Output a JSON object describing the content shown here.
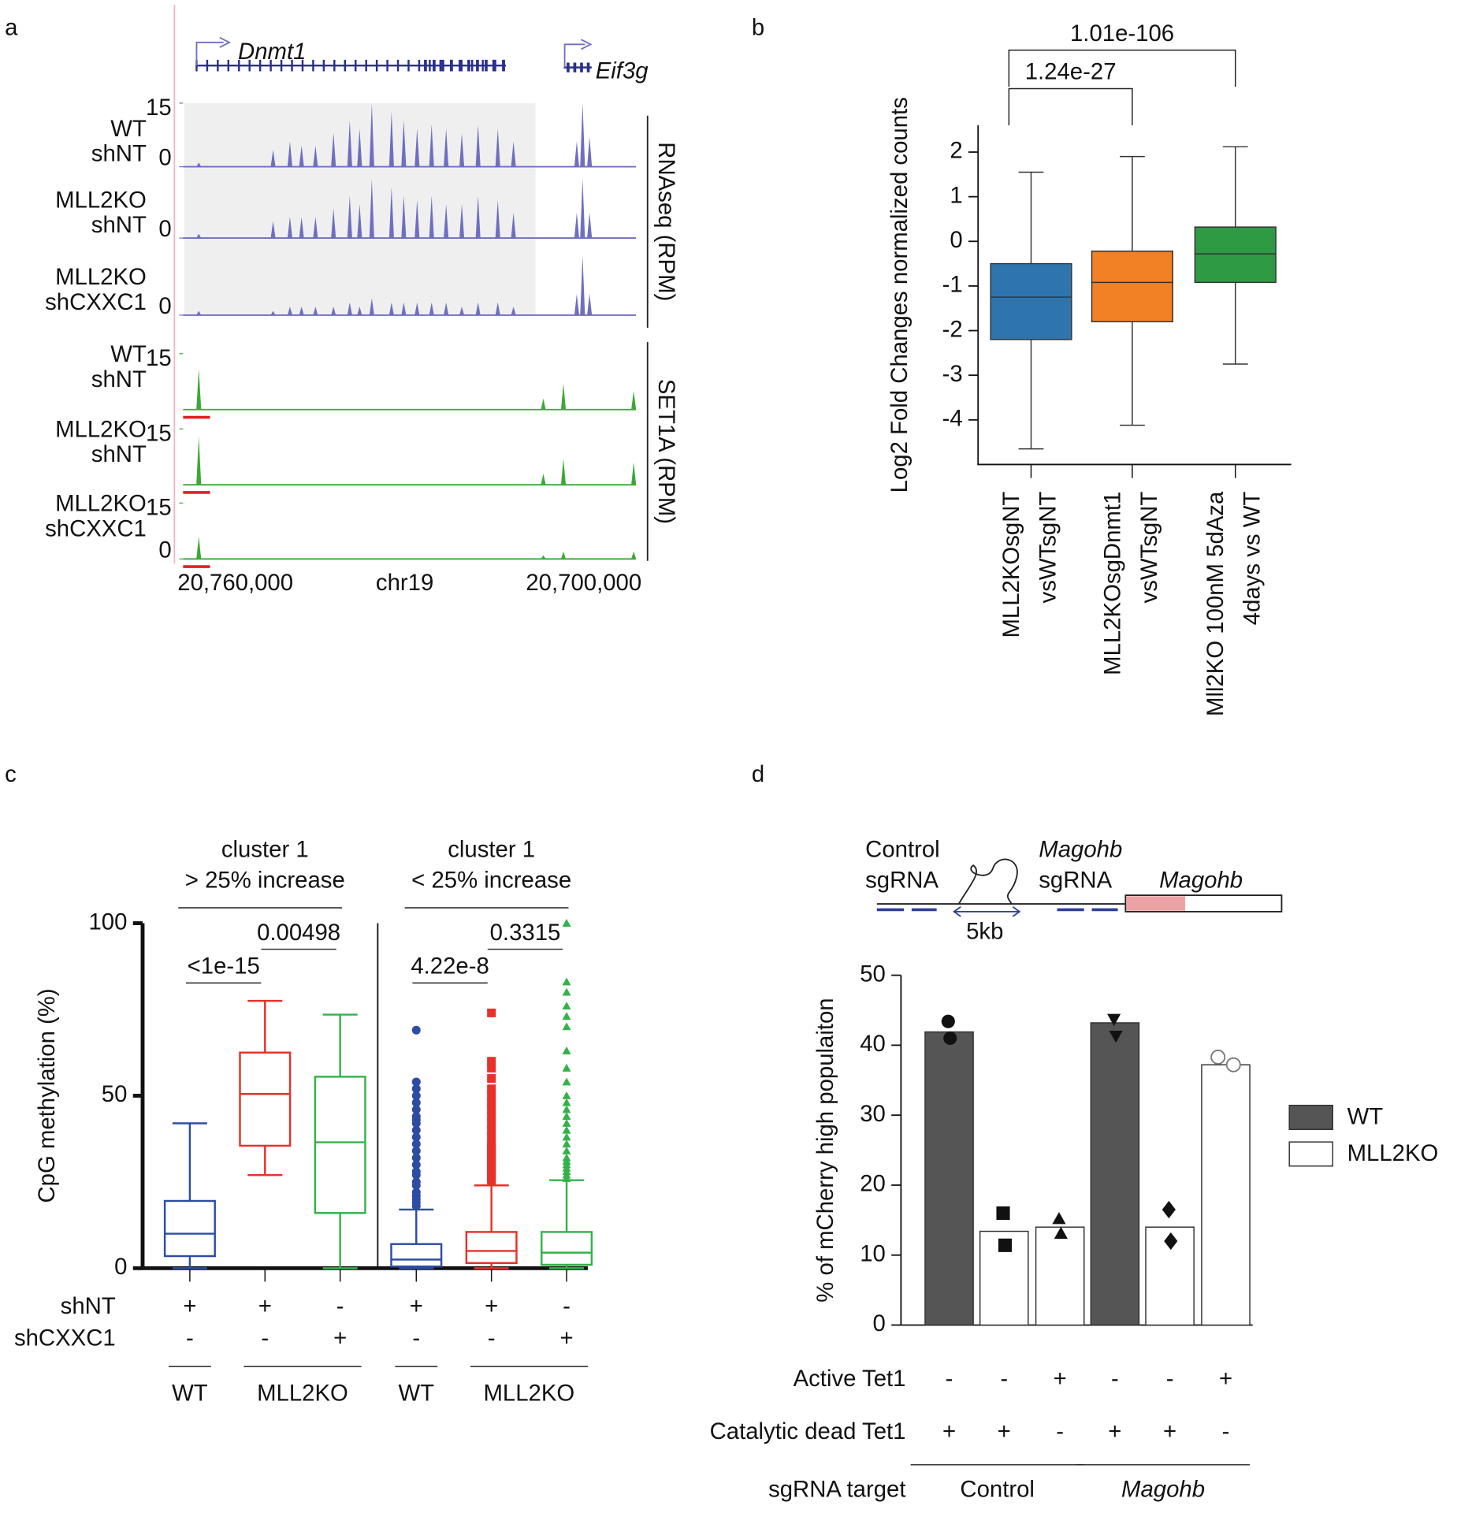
{
  "chart_data": [
    {
      "panel": "a",
      "type": "genome_tracks",
      "genes": [
        "Dnmt1",
        "Eif3g"
      ],
      "xlabel": "chr19",
      "xlim": [
        20769000,
        20691000
      ],
      "xticks": [
        {
          "value": 20760000,
          "label": "20,760,000"
        },
        {
          "value": 20700000,
          "label": "20,700,000"
        }
      ],
      "highlight": [
        20768800,
        20708300
      ],
      "groups": [
        {
          "name": "RNAseq (RPM)",
          "color": "#6f6fc0",
          "peaks_x": [
            20766300,
            20753500,
            20750600,
            20748600,
            20746200,
            20743100,
            20740300,
            20738600,
            20736500,
            20733100,
            20731000,
            20728700,
            20726200,
            20723700,
            20721000,
            20718200,
            20714800,
            20712100,
            20701200,
            20700200,
            20699000
          ],
          "tracks": [
            {
              "label": [
                "WT",
                "shNT"
              ],
              "ylim": [
                0,
                15
              ],
              "yticks": [
                0,
                15
              ],
              "values": [
                1,
                4,
                6,
                5,
                5,
                8,
                11,
                9,
                15,
                13,
                11,
                9,
                10,
                9,
                8,
                10,
                9,
                6,
                6,
                15,
                7
              ]
            },
            {
              "label": [
                "MLL2KO",
                "shNT"
              ],
              "ylim": [
                0,
                15
              ],
              "yticks": [
                0
              ],
              "values": [
                1,
                4,
                5,
                5,
                5,
                7,
                10,
                8,
                14,
                12,
                10,
                9,
                10,
                8,
                8,
                10,
                9,
                6,
                6,
                14,
                6
              ]
            },
            {
              "label": [
                "MLL2KO",
                "shCXXC1"
              ],
              "ylim": [
                0,
                15
              ],
              "yticks": [
                0
              ],
              "values": [
                1,
                1,
                2,
                2,
                2,
                2,
                3,
                2,
                4,
                3,
                3,
                3,
                3,
                3,
                2,
                3,
                3,
                2,
                5,
                14,
                5
              ]
            }
          ]
        },
        {
          "name": "SET1A (RPM)",
          "color": "#3aaa35",
          "peaks_x": [
            20766300,
            20706960,
            20703500,
            20691400
          ],
          "tracks": [
            {
              "label": [
                "WT",
                "shNT"
              ],
              "ylim": [
                0,
                15
              ],
              "yticks": [
                15
              ],
              "values": [
                11,
                3,
                7,
                5
              ]
            },
            {
              "label": [
                "MLL2KO",
                "shNT"
              ],
              "ylim": [
                0,
                15
              ],
              "yticks": [
                15
              ],
              "values": [
                13,
                3,
                7,
                6
              ]
            },
            {
              "label": [
                "MLL2KO",
                "shCXXC1"
              ],
              "ylim": [
                0,
                15
              ],
              "yticks": [
                0,
                15
              ],
              "values": [
                6,
                1,
                2,
                2
              ]
            }
          ]
        }
      ]
    },
    {
      "panel": "b",
      "type": "box",
      "ylabel": "Log2 Fold Changes normalized counts",
      "ylim": [
        -5,
        2.6
      ],
      "yticks": [
        -4,
        -3,
        -2,
        -1,
        0,
        1,
        2
      ],
      "categories": [
        [
          "MLL2KOsgNT",
          "vsWTsgNT"
        ],
        [
          "MLL2KOsgDnmt1",
          "vsWTsgNT"
        ],
        [
          "Mll2KO 100nM 5dAza",
          "4days vs WT"
        ]
      ],
      "boxes": [
        {
          "color": "#2e75b0",
          "min": -4.65,
          "q1": -2.2,
          "median": -1.25,
          "q3": -0.5,
          "max": 1.55
        },
        {
          "color": "#f28024",
          "min": -4.12,
          "q1": -1.8,
          "median": -0.92,
          "q3": -0.22,
          "max": 1.9
        },
        {
          "color": "#2f9a44",
          "min": -2.75,
          "q1": -0.92,
          "median": -0.28,
          "q3": 0.32,
          "max": 2.12
        }
      ],
      "comparisons": [
        {
          "pair": [
            0,
            1
          ],
          "label": "1.24e-27"
        },
        {
          "pair": [
            0,
            2
          ],
          "label": "1.01e-106"
        }
      ]
    },
    {
      "panel": "c",
      "type": "box",
      "ylabel": "CpG methylation (%)",
      "ylim": [
        0,
        100
      ],
      "yticks": [
        0,
        50,
        100
      ],
      "groups": [
        {
          "title": [
            "cluster 1",
            "> 25% increase"
          ],
          "boxes": [
            {
              "color": "#2c4da3",
              "min": 0,
              "q1": 3.5,
              "median": 10,
              "q3": 19.5,
              "max": 42
            },
            {
              "color": "#e8312a",
              "min": 27,
              "q1": 35.5,
              "median": 50.5,
              "q3": 62.5,
              "max": 77.5
            },
            {
              "color": "#34b24a",
              "min": 0,
              "q1": 16,
              "median": 36.5,
              "q3": 55.5,
              "max": 73.5
            }
          ],
          "comparisons": [
            {
              "pair": [
                0,
                1
              ],
              "label": "<1e-15"
            },
            {
              "pair": [
                1,
                2
              ],
              "label": "0.00498"
            }
          ]
        },
        {
          "title": [
            "cluster 1",
            "< 25% increase"
          ],
          "boxes": [
            {
              "color": "#2c4da3",
              "marker": "circle",
              "min": 0,
              "q1": 0.5,
              "median": 2.5,
              "q3": 7,
              "max": 17,
              "outliers": [
                69,
                54,
                52,
                50,
                48,
                46,
                44,
                43,
                42,
                40,
                38,
                36,
                34,
                32,
                30,
                28,
                27,
                25,
                24,
                22,
                21,
                20,
                19,
                18
              ]
            },
            {
              "color": "#e8312a",
              "marker": "square",
              "min": 0,
              "q1": 1.5,
              "median": 5,
              "q3": 10.5,
              "max": 24,
              "outliers": [
                74,
                60,
                58,
                55,
                52,
                50,
                48,
                46,
                44,
                42,
                40,
                38,
                36,
                35,
                34,
                33,
                32,
                31,
                30,
                29,
                28,
                27,
                26,
                25
              ]
            },
            {
              "color": "#34b24a",
              "marker": "triangle",
              "min": 0,
              "q1": 1,
              "median": 4.5,
              "q3": 10.5,
              "max": 25.5,
              "outliers": [
                100,
                83,
                80,
                76,
                73,
                70,
                63,
                58,
                54,
                50,
                48,
                46,
                44,
                42,
                40,
                38,
                36,
                34,
                32,
                31,
                30,
                29,
                28,
                27,
                26
              ]
            }
          ],
          "comparisons": [
            {
              "pair": [
                0,
                1
              ],
              "label": "4.22e-8"
            },
            {
              "pair": [
                1,
                2
              ],
              "label": "0.3315"
            }
          ]
        }
      ],
      "rows": [
        {
          "name": "shNT",
          "values": [
            "+",
            "+",
            "-",
            "+",
            "+",
            "-"
          ]
        },
        {
          "name": "shCXXC1",
          "values": [
            "-",
            "-",
            "+",
            "-",
            "-",
            "+"
          ]
        }
      ],
      "genotypes": [
        {
          "label": "WT",
          "span": [
            0,
            0
          ]
        },
        {
          "label": "MLL2KO",
          "span": [
            1,
            2
          ]
        },
        {
          "label": "WT",
          "span": [
            3,
            3
          ]
        },
        {
          "label": "MLL2KO",
          "span": [
            4,
            5
          ]
        }
      ]
    },
    {
      "panel": "d",
      "type": "bar",
      "ylabel": "% of mCherry high populaiton",
      "ylim": [
        0,
        50
      ],
      "yticks": [
        0,
        10,
        20,
        30,
        40,
        50
      ],
      "legend": "right",
      "series": [
        {
          "name": "WT",
          "color": "#555555",
          "values": [
            41.9,
            null,
            null,
            43.2,
            null,
            null
          ]
        },
        {
          "name": "MLL2KO",
          "color": "#ffffff",
          "values": [
            null,
            13.4,
            14,
            null,
            14,
            37.2
          ]
        }
      ],
      "points": [
        [
          43.4,
          41
        ],
        [
          16,
          11.4
        ],
        [
          15.2,
          13.1
        ],
        [
          43.7,
          41.3
        ],
        [
          16.5,
          12
        ],
        [
          38.3,
          37.2
        ]
      ],
      "markers": [
        "circle",
        "square",
        "triangle",
        "triangle-down",
        "diamond",
        "open-circle"
      ],
      "rows": [
        {
          "name": "Active Tet1",
          "values": [
            "-",
            "-",
            "+",
            "-",
            "-",
            "+"
          ]
        },
        {
          "name": "Catalytic dead Tet1",
          "values": [
            "+",
            "+",
            "-",
            "+",
            "+",
            "-"
          ]
        }
      ],
      "xgroups": {
        "name": "sgRNA target",
        "groups": [
          {
            "label": "Control",
            "span": [
              0,
              2
            ]
          },
          {
            "label": "Magohb",
            "span": [
              3,
              5
            ]
          }
        ]
      },
      "diagram": {
        "labels": [
          [
            "Control",
            "sgRNA"
          ],
          [
            "Magohb",
            "sgRNA"
          ],
          [
            "Magohb"
          ]
        ],
        "scale": "5kb"
      }
    }
  ]
}
